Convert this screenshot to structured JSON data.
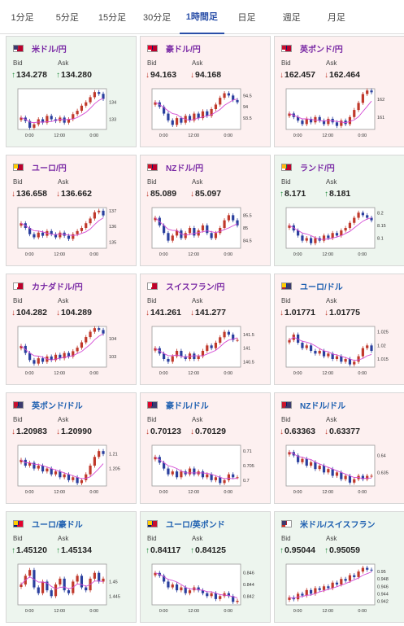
{
  "tabs": [
    {
      "label": "1分足",
      "active": false
    },
    {
      "label": "5分足",
      "active": false
    },
    {
      "label": "15分足",
      "active": false
    },
    {
      "label": "30分足",
      "active": false
    },
    {
      "label": "1時間足",
      "active": true
    },
    {
      "label": "日足",
      "active": false
    },
    {
      "label": "週足",
      "active": false
    },
    {
      "label": "月足",
      "active": false
    }
  ],
  "labels": {
    "bid": "Bid",
    "ask": "Ask"
  },
  "colors": {
    "up": "#1f8a3b",
    "down": "#c0392b",
    "accent": "#2a4fa8",
    "ma": "#d44ad4"
  },
  "cards": [
    {
      "pair": "米ドル/円",
      "direction": "up",
      "bid": "134.278",
      "ask": "134.280",
      "flag": "us-jp"
    },
    {
      "pair": "豪ドル/円",
      "direction": "down",
      "bid": "94.163",
      "ask": "94.168",
      "flag": "au-jp"
    },
    {
      "pair": "英ポンド/円",
      "direction": "down",
      "bid": "162.457",
      "ask": "162.464",
      "flag": "gb-jp"
    },
    {
      "pair": "ユーロ/円",
      "direction": "down",
      "bid": "136.658",
      "ask": "136.662",
      "flag": "eu-jp"
    },
    {
      "pair": "NZドル/円",
      "direction": "down",
      "bid": "85.089",
      "ask": "85.097",
      "flag": "nz-jp"
    },
    {
      "pair": "ランド/円",
      "direction": "up",
      "bid": "8.171",
      "ask": "8.181",
      "flag": "za-jp"
    },
    {
      "pair": "カナダドル/円",
      "direction": "down",
      "bid": "104.282",
      "ask": "104.289",
      "flag": "ca-jp"
    },
    {
      "pair": "スイスフラン/円",
      "direction": "down",
      "bid": "141.261",
      "ask": "141.277",
      "flag": "ch-jp"
    },
    {
      "pair": "ユーロ/ドル",
      "direction": "down",
      "bid": "1.01771",
      "ask": "1.01775",
      "flag": "eu-us"
    },
    {
      "pair": "英ポンド/ドル",
      "direction": "down",
      "bid": "1.20983",
      "ask": "1.20990",
      "flag": "gb-us"
    },
    {
      "pair": "豪ドル/ドル",
      "direction": "down",
      "bid": "0.70123",
      "ask": "0.70129",
      "flag": "au-us"
    },
    {
      "pair": "NZドル/ドル",
      "direction": "down",
      "bid": "0.63363",
      "ask": "0.63377",
      "flag": "nz-us"
    },
    {
      "pair": "ユーロ/豪ドル",
      "direction": "up",
      "bid": "1.45120",
      "ask": "1.45134",
      "flag": "eu-au"
    },
    {
      "pair": "ユーロ/英ポンド",
      "direction": "up",
      "bid": "0.84117",
      "ask": "0.84125",
      "flag": "eu-gb"
    },
    {
      "pair": "米ドル/スイスフラン",
      "direction": "up",
      "bid": "0.95044",
      "ask": "0.95059",
      "flag": "us-ch"
    }
  ],
  "chart_data": [
    {
      "type": "candlestick",
      "x_ticks": [
        "0:00",
        "12:00",
        "0:00"
      ],
      "y_ticks": [
        "134",
        "133"
      ],
      "ylim": [
        132.4,
        134.8
      ],
      "path": [
        133.1,
        132.9,
        132.5,
        132.7,
        133.0,
        132.8,
        133.2,
        133.0,
        132.9,
        133.1,
        132.8,
        133.0,
        133.3,
        133.5,
        133.8,
        134.0,
        134.3,
        134.6,
        134.5,
        134.2
      ]
    },
    {
      "type": "candlestick",
      "x_ticks": [
        "0:00",
        "12:00",
        "0:00"
      ],
      "y_ticks": [
        "94.5",
        "94",
        "93.5"
      ],
      "ylim": [
        93.0,
        94.8
      ],
      "path": [
        94.2,
        94.0,
        93.7,
        93.4,
        93.2,
        93.5,
        93.3,
        93.6,
        93.4,
        93.7,
        93.5,
        93.8,
        93.6,
        93.9,
        94.1,
        94.4,
        94.6,
        94.5,
        94.3,
        94.2
      ]
    },
    {
      "type": "candlestick",
      "x_ticks": [
        "0:00",
        "12:00",
        "0:00"
      ],
      "y_ticks": [
        "162",
        "161"
      ],
      "ylim": [
        160.3,
        162.6
      ],
      "path": [
        161.2,
        161.0,
        160.8,
        160.6,
        160.9,
        160.7,
        161.0,
        160.8,
        160.6,
        160.9,
        160.7,
        160.5,
        160.8,
        160.6,
        161.0,
        161.4,
        161.8,
        162.3,
        162.5,
        162.4
      ]
    },
    {
      "type": "candlestick",
      "x_ticks": [
        "0:00",
        "12:00",
        "0:00"
      ],
      "y_ticks": [
        "137",
        "136",
        "135"
      ],
      "ylim": [
        134.6,
        137.2
      ],
      "path": [
        136.2,
        135.9,
        135.5,
        135.3,
        135.6,
        135.4,
        135.7,
        135.5,
        135.3,
        135.6,
        135.4,
        135.2,
        135.5,
        135.7,
        135.9,
        136.2,
        136.5,
        136.9,
        137.0,
        136.7
      ]
    },
    {
      "type": "candlestick",
      "x_ticks": [
        "0:00",
        "12:00",
        "0:00"
      ],
      "y_ticks": [
        "85.5",
        "85",
        "84.5"
      ],
      "ylim": [
        84.2,
        85.8
      ],
      "path": [
        85.4,
        85.1,
        84.8,
        84.5,
        84.7,
        84.9,
        84.6,
        84.8,
        85.0,
        84.7,
        84.9,
        85.1,
        84.8,
        84.6,
        84.8,
        85.0,
        85.3,
        85.5,
        85.3,
        85.1
      ]
    },
    {
      "type": "candlestick",
      "x_ticks": [
        "0:00",
        "12:00",
        "0:00"
      ],
      "y_ticks": [
        "8.2",
        "8.15",
        "8.1"
      ],
      "ylim": [
        8.06,
        8.22
      ],
      "path": [
        8.15,
        8.13,
        8.11,
        8.09,
        8.1,
        8.08,
        8.1,
        8.09,
        8.11,
        8.1,
        8.12,
        8.11,
        8.13,
        8.14,
        8.16,
        8.18,
        8.2,
        8.19,
        8.18,
        8.17
      ]
    },
    {
      "type": "candlestick",
      "x_ticks": [
        "0:00",
        "12:00",
        "0:00"
      ],
      "y_ticks": [
        "104",
        "103"
      ],
      "ylim": [
        102.4,
        104.7
      ],
      "path": [
        103.6,
        103.2,
        102.8,
        102.6,
        102.9,
        102.7,
        103.0,
        102.8,
        103.1,
        102.9,
        103.2,
        103.0,
        103.3,
        103.5,
        103.8,
        104.1,
        104.4,
        104.6,
        104.5,
        104.3
      ]
    },
    {
      "type": "candlestick",
      "x_ticks": [
        "0:00",
        "12:00",
        "0:00"
      ],
      "y_ticks": [
        "141.5",
        "141",
        "140.5"
      ],
      "ylim": [
        140.3,
        141.8
      ],
      "path": [
        141.0,
        140.8,
        140.6,
        140.5,
        140.7,
        140.9,
        140.7,
        140.6,
        140.8,
        140.6,
        140.7,
        140.9,
        141.1,
        141.0,
        141.2,
        141.4,
        141.6,
        141.5,
        141.3,
        141.3
      ]
    },
    {
      "type": "candlestick",
      "x_ticks": [
        "0:00",
        "12:00",
        "0:00"
      ],
      "y_ticks": [
        "1.025",
        "1.02",
        "1.015"
      ],
      "ylim": [
        1.012,
        1.027
      ],
      "path": [
        1.022,
        1.024,
        1.021,
        1.019,
        1.02,
        1.018,
        1.017,
        1.018,
        1.016,
        1.017,
        1.015,
        1.016,
        1.014,
        1.015,
        1.013,
        1.014,
        1.016,
        1.019,
        1.02,
        1.018
      ]
    },
    {
      "type": "candlestick",
      "x_ticks": [
        "0:00",
        "12:00",
        "0:00"
      ],
      "y_ticks": [
        "1.21",
        "1.205"
      ],
      "ylim": [
        1.199,
        1.213
      ],
      "path": [
        1.208,
        1.206,
        1.207,
        1.205,
        1.206,
        1.204,
        1.205,
        1.203,
        1.204,
        1.202,
        1.203,
        1.201,
        1.202,
        1.2,
        1.201,
        1.203,
        1.206,
        1.209,
        1.211,
        1.21
      ]
    },
    {
      "type": "candlestick",
      "x_ticks": [
        "0:00",
        "12:00",
        "0:00"
      ],
      "y_ticks": [
        "0.71",
        "0.705",
        "0.7"
      ],
      "ylim": [
        0.698,
        0.712
      ],
      "path": [
        0.708,
        0.706,
        0.704,
        0.702,
        0.703,
        0.701,
        0.703,
        0.702,
        0.704,
        0.702,
        0.703,
        0.701,
        0.702,
        0.7,
        0.701,
        0.699,
        0.7,
        0.702,
        0.701,
        0.701
      ]
    },
    {
      "type": "candlestick",
      "x_ticks": [
        "0:00",
        "12:00",
        "0:00"
      ],
      "y_ticks": [
        "0.64",
        "0.635"
      ],
      "ylim": [
        0.631,
        0.643
      ],
      "path": [
        0.641,
        0.64,
        0.638,
        0.639,
        0.637,
        0.638,
        0.636,
        0.637,
        0.635,
        0.636,
        0.634,
        0.635,
        0.633,
        0.634,
        0.632,
        0.633,
        0.634,
        0.633,
        0.634,
        0.634
      ]
    },
    {
      "type": "candlestick",
      "x_ticks": [
        "0:00",
        "12:00",
        "0:00"
      ],
      "y_ticks": [
        "1.45",
        "1.445"
      ],
      "ylim": [
        1.442,
        1.456
      ],
      "path": [
        1.449,
        1.452,
        1.454,
        1.448,
        1.446,
        1.45,
        1.447,
        1.445,
        1.449,
        1.451,
        1.447,
        1.446,
        1.45,
        1.452,
        1.448,
        1.447,
        1.451,
        1.453,
        1.45,
        1.451
      ]
    },
    {
      "type": "candlestick",
      "x_ticks": [
        "0:00",
        "12:00",
        "0:00"
      ],
      "y_ticks": [
        "0.846",
        "0.844",
        "0.842"
      ],
      "ylim": [
        0.8405,
        0.8475
      ],
      "path": [
        0.846,
        0.8455,
        0.8445,
        0.8435,
        0.844,
        0.843,
        0.8435,
        0.8425,
        0.843,
        0.8435,
        0.843,
        0.8425,
        0.842,
        0.8425,
        0.8415,
        0.842,
        0.8425,
        0.842,
        0.841,
        0.8412
      ]
    },
    {
      "type": "candlestick",
      "x_ticks": [
        "0:00",
        "12:00",
        "0:00"
      ],
      "y_ticks": [
        "0.95",
        "0.948",
        "0.946",
        "0.944",
        "0.942"
      ],
      "ylim": [
        0.941,
        0.952
      ],
      "path": [
        0.943,
        0.9425,
        0.944,
        0.9435,
        0.945,
        0.944,
        0.9455,
        0.945,
        0.946,
        0.9455,
        0.947,
        0.9465,
        0.948,
        0.9475,
        0.949,
        0.9485,
        0.95,
        0.951,
        0.9505,
        0.9504
      ]
    }
  ]
}
